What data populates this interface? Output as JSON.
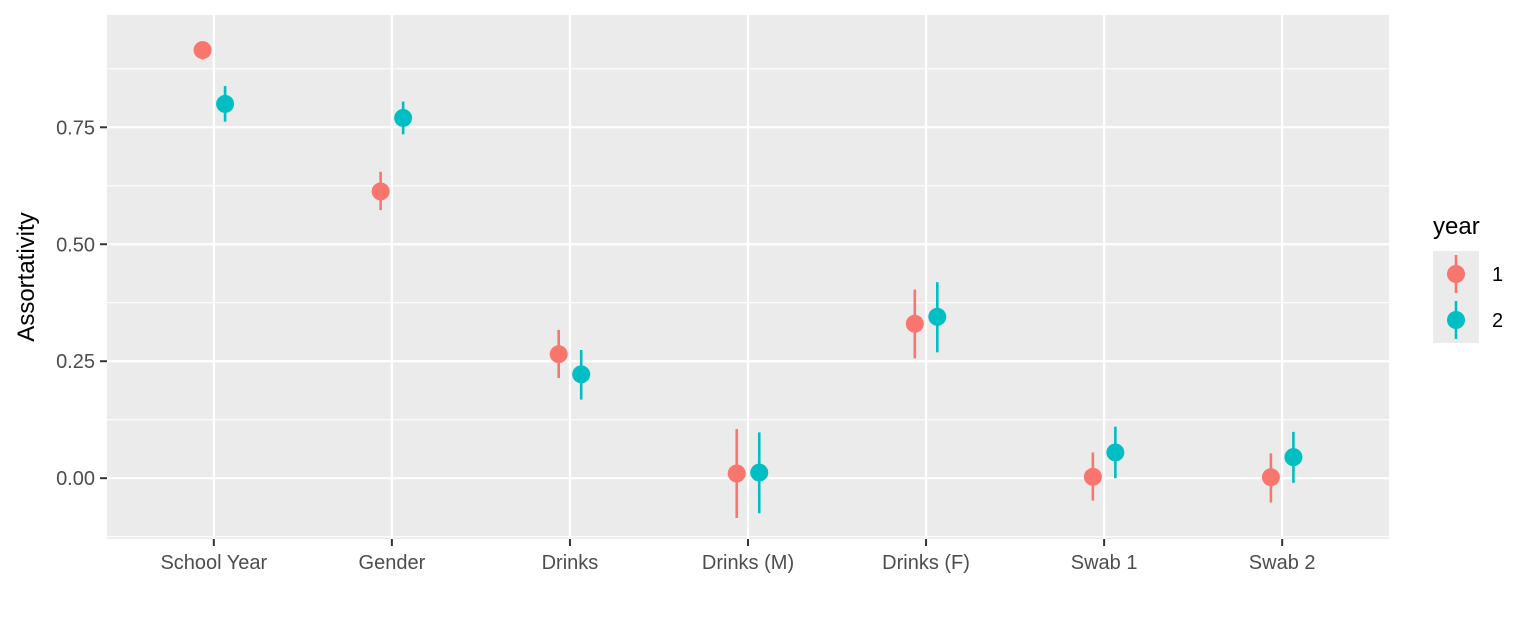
{
  "chart_data": {
    "type": "scatter",
    "title": "",
    "xlabel": "",
    "ylabel": "Assortativity",
    "categories": [
      "School Year",
      "Gender",
      "Drinks",
      "Drinks (M)",
      "Drinks (F)",
      "Swab 1",
      "Swab 2"
    ],
    "ylim": [
      -0.13,
      0.99
    ],
    "yticks": [
      0.0,
      0.25,
      0.5,
      0.75
    ],
    "ytick_labels": [
      "0.00",
      "0.25",
      "0.50",
      "0.75"
    ],
    "grid": true,
    "legend": {
      "title": "year",
      "placement": "right"
    },
    "series": [
      {
        "name": "1",
        "color": "#F8766D",
        "values": [
          0.915,
          0.613,
          0.265,
          0.01,
          0.33,
          0.003,
          0.002
        ],
        "lower": [
          0.895,
          0.573,
          0.214,
          -0.085,
          0.256,
          -0.048,
          -0.052
        ],
        "upper": [
          0.93,
          0.655,
          0.317,
          0.105,
          0.403,
          0.055,
          0.053
        ]
      },
      {
        "name": "2",
        "color": "#00BFC4",
        "values": [
          0.8,
          0.77,
          0.222,
          0.012,
          0.345,
          0.055,
          0.045
        ],
        "lower": [
          0.762,
          0.735,
          0.168,
          -0.075,
          0.269,
          0.0,
          -0.01
        ],
        "upper": [
          0.838,
          0.805,
          0.274,
          0.098,
          0.419,
          0.11,
          0.099
        ]
      }
    ]
  }
}
